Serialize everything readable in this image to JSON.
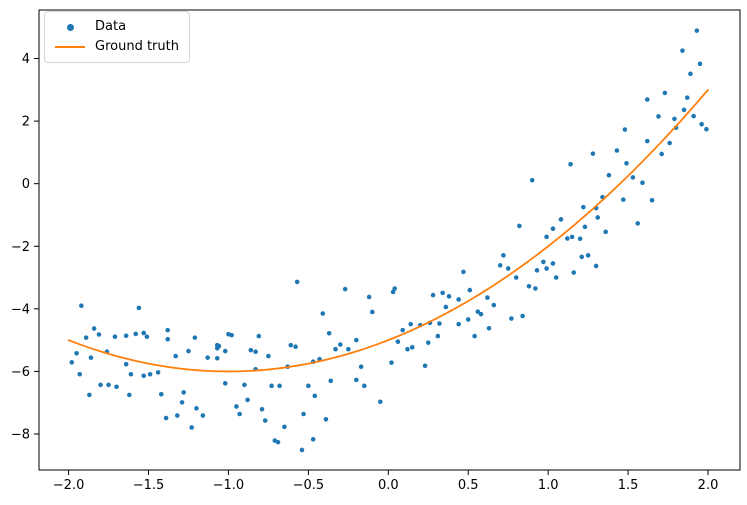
{
  "figure": {
    "background": "#ffffff"
  },
  "chart_data": {
    "type": "scatter",
    "title": "",
    "xlabel": "",
    "ylabel": "",
    "grid": false,
    "xlim": [
      -2.185,
      2.2
    ],
    "ylim": [
      -9.15,
      5.55
    ],
    "x_ticks": [
      -2.0,
      -1.5,
      -1.0,
      -0.5,
      0.0,
      0.5,
      1.0,
      1.5,
      2.0
    ],
    "x_tick_labels": [
      "−2.0",
      "−1.5",
      "−1.0",
      "−0.5",
      "0.0",
      "0.5",
      "1.0",
      "1.5",
      "2.0"
    ],
    "y_ticks": [
      -8,
      -6,
      -4,
      -2,
      0,
      2,
      4
    ],
    "y_tick_labels": [
      "−8",
      "−6",
      "−4",
      "−2",
      "0",
      "2",
      "4"
    ],
    "legend": {
      "position": "upper left",
      "items": [
        {
          "label": "Data",
          "marker": "dot",
          "color": "#1f77b4"
        },
        {
          "label": "Ground truth",
          "marker": "line",
          "color": "#ff7f0e"
        }
      ]
    },
    "series": [
      {
        "name": "Data",
        "type": "scatter",
        "color": "#1f77b4",
        "marker_radius": 2.3,
        "points": [
          [
            -1.92,
            -3.9
          ],
          [
            -1.56,
            -3.97
          ],
          [
            -1.89,
            -4.92
          ],
          [
            -1.84,
            -4.63
          ],
          [
            -1.81,
            -4.82
          ],
          [
            -1.71,
            -4.89
          ],
          [
            -1.64,
            -4.86
          ],
          [
            -1.58,
            -4.8
          ],
          [
            -1.53,
            -4.77
          ],
          [
            -1.51,
            -4.89
          ],
          [
            -1.38,
            -4.68
          ],
          [
            -1.38,
            -4.97
          ],
          [
            -1.21,
            -4.92
          ],
          [
            -1.07,
            -5.16
          ],
          [
            -1.95,
            -5.42
          ],
          [
            -1.98,
            -5.71
          ],
          [
            -1.86,
            -5.56
          ],
          [
            -1.76,
            -5.37
          ],
          [
            -1.64,
            -5.77
          ],
          [
            -1.33,
            -5.51
          ],
          [
            -1.25,
            -5.35
          ],
          [
            -1.13,
            -5.56
          ],
          [
            -1.07,
            -5.58
          ],
          [
            -1.93,
            -6.09
          ],
          [
            -1.61,
            -6.09
          ],
          [
            -1.53,
            -6.14
          ],
          [
            -1.49,
            -6.09
          ],
          [
            -1.44,
            -6.03
          ],
          [
            -1.8,
            -6.43
          ],
          [
            -1.75,
            -6.43
          ],
          [
            -1.7,
            -6.49
          ],
          [
            -1.87,
            -6.75
          ],
          [
            -1.62,
            -6.75
          ],
          [
            -1.42,
            -6.73
          ],
          [
            -1.28,
            -6.67
          ],
          [
            -1.29,
            -6.99
          ],
          [
            -1.2,
            -7.18
          ],
          [
            -1.16,
            -7.41
          ],
          [
            -1.32,
            -7.41
          ],
          [
            -1.39,
            -7.49
          ],
          [
            -1.23,
            -7.79
          ],
          [
            -1.06,
            -5.19
          ],
          [
            -0.57,
            -3.14
          ],
          [
            -0.27,
            -3.37
          ],
          [
            -0.12,
            -3.62
          ],
          [
            0.03,
            -3.46
          ],
          [
            -0.1,
            -4.1
          ],
          [
            -0.41,
            -4.15
          ],
          [
            -0.37,
            -4.78
          ],
          [
            -0.98,
            -4.84
          ],
          [
            -1.0,
            -4.81
          ],
          [
            -0.81,
            -4.87
          ],
          [
            -0.86,
            -5.32
          ],
          [
            -0.83,
            -5.37
          ],
          [
            -1.07,
            -5.26
          ],
          [
            -1.02,
            -5.35
          ],
          [
            -0.75,
            -5.51
          ],
          [
            -0.61,
            -5.16
          ],
          [
            -0.58,
            -5.21
          ],
          [
            -0.47,
            -5.69
          ],
          [
            -0.43,
            -5.61
          ],
          [
            -0.33,
            -5.29
          ],
          [
            -0.3,
            -5.14
          ],
          [
            -0.25,
            -5.29
          ],
          [
            -0.83,
            -5.93
          ],
          [
            -0.63,
            -5.85
          ],
          [
            -1.02,
            -6.38
          ],
          [
            -0.9,
            -6.43
          ],
          [
            -0.73,
            -6.46
          ],
          [
            -0.68,
            -6.46
          ],
          [
            -0.5,
            -6.46
          ],
          [
            -0.46,
            -6.78
          ],
          [
            -0.88,
            -6.91
          ],
          [
            -0.95,
            -7.12
          ],
          [
            -0.93,
            -7.36
          ],
          [
            -0.79,
            -7.21
          ],
          [
            -0.77,
            -7.57
          ],
          [
            -0.53,
            -7.36
          ],
          [
            -0.65,
            -7.77
          ],
          [
            -0.71,
            -8.21
          ],
          [
            -0.69,
            -8.26
          ],
          [
            -0.47,
            -8.17
          ],
          [
            -0.54,
            -8.51
          ],
          [
            -0.39,
            -7.53
          ],
          [
            -0.36,
            -6.3
          ],
          [
            -0.2,
            -6.27
          ],
          [
            -0.15,
            -6.46
          ],
          [
            -0.05,
            -6.97
          ],
          [
            -0.2,
            -5.0
          ],
          [
            -0.17,
            -5.85
          ],
          [
            0.02,
            -5.72
          ],
          [
            0.9,
            0.11
          ],
          [
            0.82,
            -1.35
          ],
          [
            0.72,
            -2.29
          ],
          [
            0.7,
            -2.61
          ],
          [
            0.75,
            -2.71
          ],
          [
            0.97,
            -2.5
          ],
          [
            0.99,
            -2.71
          ],
          [
            0.93,
            -2.77
          ],
          [
            1.03,
            -2.55
          ],
          [
            1.05,
            -3.0
          ],
          [
            0.8,
            -3.0
          ],
          [
            0.88,
            -3.28
          ],
          [
            0.92,
            -3.35
          ],
          [
            0.47,
            -2.82
          ],
          [
            0.51,
            -3.4
          ],
          [
            0.04,
            -3.35
          ],
          [
            0.28,
            -3.56
          ],
          [
            0.34,
            -3.49
          ],
          [
            0.38,
            -3.6
          ],
          [
            0.44,
            -3.7
          ],
          [
            0.36,
            -3.94
          ],
          [
            0.62,
            -3.64
          ],
          [
            0.66,
            -3.88
          ],
          [
            0.56,
            -4.09
          ],
          [
            0.58,
            -4.17
          ],
          [
            0.5,
            -4.34
          ],
          [
            0.44,
            -4.49
          ],
          [
            0.32,
            -4.47
          ],
          [
            0.26,
            -4.45
          ],
          [
            0.2,
            -4.52
          ],
          [
            0.14,
            -4.49
          ],
          [
            0.09,
            -4.68
          ],
          [
            0.06,
            -5.05
          ],
          [
            0.15,
            -5.23
          ],
          [
            0.12,
            -5.29
          ],
          [
            0.25,
            -5.08
          ],
          [
            0.31,
            -4.87
          ],
          [
            0.23,
            -5.82
          ],
          [
            0.54,
            -4.87
          ],
          [
            0.63,
            -4.62
          ],
          [
            0.77,
            -4.31
          ],
          [
            0.84,
            -4.23
          ],
          [
            1.93,
            4.89
          ],
          [
            1.84,
            4.25
          ],
          [
            1.95,
            3.83
          ],
          [
            1.89,
            3.51
          ],
          [
            1.87,
            2.75
          ],
          [
            1.73,
            2.9
          ],
          [
            1.62,
            2.69
          ],
          [
            1.85,
            2.36
          ],
          [
            1.91,
            2.16
          ],
          [
            1.96,
            1.9
          ],
          [
            1.99,
            1.74
          ],
          [
            1.79,
            2.07
          ],
          [
            1.8,
            1.79
          ],
          [
            1.69,
            2.15
          ],
          [
            1.48,
            1.73
          ],
          [
            1.62,
            1.36
          ],
          [
            1.76,
            1.3
          ],
          [
            1.43,
            1.06
          ],
          [
            1.28,
            0.96
          ],
          [
            1.71,
            0.95
          ],
          [
            1.14,
            0.62
          ],
          [
            1.38,
            0.27
          ],
          [
            1.49,
            0.65
          ],
          [
            1.53,
            0.2
          ],
          [
            1.59,
            0.03
          ],
          [
            1.34,
            -0.43
          ],
          [
            1.47,
            -0.51
          ],
          [
            1.65,
            -0.53
          ],
          [
            1.22,
            -0.75
          ],
          [
            1.3,
            -0.78
          ],
          [
            1.31,
            -1.08
          ],
          [
            1.56,
            -1.27
          ],
          [
            1.23,
            -1.38
          ],
          [
            1.36,
            -1.54
          ],
          [
            1.08,
            -1.14
          ],
          [
            1.03,
            -1.44
          ],
          [
            0.99,
            -1.7
          ],
          [
            1.12,
            -1.75
          ],
          [
            1.15,
            -1.7
          ],
          [
            1.2,
            -1.76
          ],
          [
            1.21,
            -2.34
          ],
          [
            1.25,
            -2.29
          ],
          [
            1.3,
            -2.63
          ],
          [
            1.16,
            -2.84
          ]
        ]
      },
      {
        "name": "Ground truth",
        "type": "line",
        "color": "#ff7f0e",
        "line_width": 1.8,
        "poly_coeffs": [
          1,
          2,
          -5
        ],
        "x_domain": [
          -2,
          2
        ]
      }
    ]
  }
}
